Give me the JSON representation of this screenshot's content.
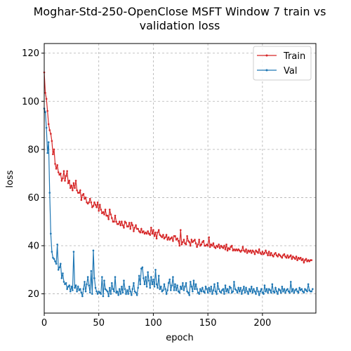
{
  "chart_data": {
    "type": "line",
    "title": "Moghar-Std-250-OpenClose MSFT Window 7 train vs validation loss",
    "title_lines": [
      "Moghar-Std-250-OpenClose MSFT Window 7 train vs",
      "validation loss"
    ],
    "xlabel": "epoch",
    "ylabel": "loss",
    "xlim": [
      0,
      249
    ],
    "ylim": [
      12,
      124
    ],
    "xticks": [
      0,
      50,
      100,
      150,
      200
    ],
    "yticks": [
      20,
      40,
      60,
      80,
      100,
      120
    ],
    "grid": true,
    "legend_position": "top-right",
    "x_start": 0,
    "x_step": 1,
    "series": [
      {
        "name": "Train",
        "color": "#d62728",
        "values": [
          112.0,
          103.5,
          101.0,
          96.0,
          90.5,
          88.0,
          86.5,
          83.5,
          78.0,
          80.0,
          74.0,
          72.0,
          73.5,
          70.5,
          69.5,
          70.0,
          67.0,
          68.0,
          71.0,
          67.0,
          69.0,
          71.0,
          66.0,
          67.0,
          64.0,
          65.0,
          63.0,
          66.0,
          64.0,
          67.0,
          63.0,
          62.0,
          62.0,
          63.0,
          59.0,
          61.0,
          61.5,
          59.5,
          60.0,
          58.0,
          57.5,
          58.0,
          59.5,
          58.0,
          56.0,
          56.5,
          58.0,
          57.0,
          56.0,
          58.0,
          54.5,
          57.0,
          55.0,
          53.5,
          54.0,
          53.0,
          55.0,
          52.5,
          52.5,
          51.0,
          55.0,
          53.0,
          51.5,
          50.0,
          50.0,
          52.5,
          50.0,
          49.0,
          49.0,
          50.0,
          48.5,
          50.0,
          48.5,
          47.5,
          50.0,
          49.5,
          48.0,
          48.0,
          49.5,
          47.0,
          49.5,
          48.5,
          46.0,
          47.5,
          48.5,
          47.0,
          47.0,
          46.0,
          45.5,
          47.0,
          45.5,
          46.0,
          45.0,
          45.5,
          45.0,
          46.0,
          45.0,
          44.5,
          47.5,
          45.0,
          46.5,
          44.0,
          45.5,
          43.0,
          45.5,
          46.5,
          44.5,
          44.0,
          43.5,
          44.5,
          43.0,
          43.5,
          44.5,
          42.5,
          43.5,
          42.5,
          43.0,
          43.5,
          42.0,
          44.0,
          44.0,
          42.5,
          43.0,
          42.0,
          40.0,
          46.5,
          40.5,
          41.5,
          42.5,
          41.0,
          40.5,
          44.0,
          42.0,
          41.5,
          40.0,
          42.5,
          41.5,
          42.0,
          42.5,
          41.0,
          39.5,
          40.5,
          42.5,
          40.0,
          40.5,
          41.5,
          42.0,
          40.0,
          40.0,
          40.5,
          40.0,
          43.5,
          39.5,
          40.5,
          40.0,
          41.0,
          39.5,
          39.0,
          40.0,
          39.5,
          40.5,
          39.0,
          40.0,
          39.5,
          39.0,
          40.0,
          38.5,
          40.5,
          38.0,
          39.0,
          38.5,
          39.5,
          40.0,
          38.0,
          38.5,
          38.0,
          38.5,
          38.0,
          38.5,
          38.0,
          37.5,
          38.0,
          39.5,
          38.0,
          37.5,
          38.5,
          37.0,
          38.0,
          37.5,
          38.0,
          37.0,
          38.0,
          37.5,
          36.5,
          38.0,
          37.5,
          37.0,
          38.5,
          37.0,
          36.5,
          37.5,
          36.5,
          37.0,
          38.0,
          37.0,
          36.0,
          37.5,
          36.0,
          37.0,
          36.0,
          35.5,
          36.5,
          37.0,
          36.0,
          35.5,
          36.5,
          36.0,
          35.5,
          35.0,
          36.0,
          36.5,
          35.5,
          35.0,
          36.0,
          35.0,
          35.5,
          36.0,
          34.5,
          35.5,
          35.0,
          34.5,
          35.5,
          34.0,
          35.0,
          34.5,
          35.0,
          34.0,
          34.5,
          33.0,
          34.0,
          34.5,
          33.5,
          34.0,
          33.5,
          34.0,
          34.0
        ]
      },
      {
        "name": "Val",
        "color": "#1f77b4",
        "values": [
          97.0,
          95.5,
          89.0,
          78.5,
          83.0,
          62.0,
          45.0,
          37.5,
          35.0,
          34.5,
          33.5,
          32.5,
          40.5,
          30.0,
          31.0,
          32.5,
          26.5,
          28.5,
          25.0,
          24.0,
          24.5,
          22.0,
          23.0,
          23.5,
          21.0,
          23.0,
          21.5,
          37.5,
          22.5,
          23.5,
          21.0,
          23.0,
          21.5,
          22.0,
          20.5,
          19.0,
          22.0,
          25.0,
          21.0,
          24.0,
          27.0,
          23.5,
          20.5,
          29.5,
          20.0,
          38.0,
          26.5,
          22.5,
          21.0,
          20.0,
          21.0,
          20.5,
          20.0,
          27.0,
          19.0,
          25.5,
          22.0,
          21.5,
          21.0,
          19.0,
          22.5,
          20.0,
          24.5,
          22.0,
          21.0,
          27.0,
          20.5,
          21.0,
          19.5,
          22.0,
          20.0,
          23.0,
          20.5,
          25.5,
          22.0,
          20.0,
          21.5,
          20.0,
          23.0,
          21.0,
          19.5,
          22.0,
          24.5,
          21.0,
          20.5,
          19.5,
          22.5,
          27.5,
          24.0,
          30.5,
          31.0,
          26.5,
          24.0,
          27.0,
          23.0,
          29.0,
          25.5,
          22.5,
          27.0,
          24.0,
          26.0,
          23.0,
          30.0,
          24.0,
          22.5,
          27.5,
          22.0,
          23.0,
          21.0,
          21.5,
          24.0,
          22.0,
          20.0,
          21.5,
          24.5,
          26.0,
          21.5,
          23.5,
          27.0,
          21.5,
          24.0,
          21.5,
          23.5,
          21.0,
          20.5,
          23.0,
          22.0,
          24.5,
          21.5,
          23.0,
          24.5,
          21.0,
          20.5,
          19.5,
          25.0,
          23.0,
          21.0,
          25.5,
          22.0,
          24.0,
          22.0,
          20.5,
          20.0,
          22.0,
          21.0,
          22.5,
          21.0,
          20.5,
          23.0,
          22.0,
          20.5,
          22.5,
          21.0,
          23.0,
          20.0,
          21.5,
          24.0,
          21.0,
          20.0,
          24.5,
          22.0,
          21.0,
          20.5,
          21.5,
          22.0,
          20.0,
          23.5,
          21.0,
          22.0,
          20.5,
          23.0,
          22.5,
          20.5,
          21.0,
          25.0,
          22.0,
          21.5,
          20.5,
          22.5,
          21.0,
          22.5,
          20.0,
          21.5,
          23.0,
          20.5,
          22.5,
          21.0,
          20.0,
          22.0,
          21.0,
          23.0,
          20.5,
          22.0,
          21.0,
          20.0,
          22.5,
          21.0,
          19.5,
          21.0,
          22.0,
          20.5,
          20.0,
          23.5,
          21.0,
          22.0,
          20.5,
          22.0,
          21.5,
          20.5,
          24.0,
          21.0,
          20.5,
          22.5,
          21.0,
          20.0,
          22.0,
          21.5,
          20.5,
          23.0,
          21.0,
          22.0,
          20.5,
          21.5,
          22.0,
          21.0,
          20.5,
          25.0,
          21.0,
          22.0,
          20.5,
          21.5,
          22.0,
          21.0,
          20.5,
          22.5,
          21.5,
          22.0,
          21.0,
          20.5,
          22.0,
          21.5,
          21.0,
          24.0,
          21.5,
          21.0,
          21.0,
          22.0
        ]
      }
    ]
  }
}
